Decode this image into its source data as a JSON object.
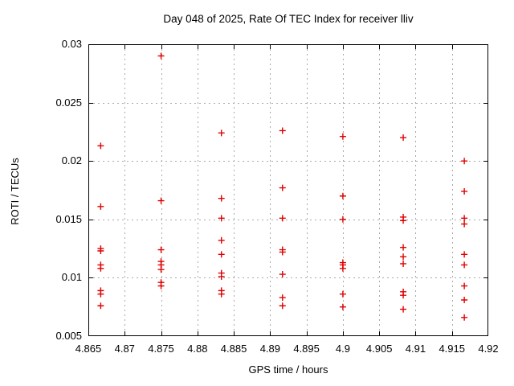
{
  "title": "Day 048 of 2025, Rate Of TEC Index for receiver lliv",
  "chart_data": {
    "type": "scatter",
    "title": "Day 048 of 2025, Rate Of TEC Index for receiver lliv",
    "xlabel": "GPS time / hours",
    "ylabel": "ROTI / TECUs",
    "xlim": [
      4.865,
      4.92
    ],
    "ylim": [
      0.005,
      0.03
    ],
    "xticks": [
      4.865,
      4.87,
      4.875,
      4.88,
      4.885,
      4.89,
      4.895,
      4.9,
      4.905,
      4.91,
      4.915,
      4.92
    ],
    "xtick_labels": [
      "4.865",
      "4.87",
      "4.875",
      "4.88",
      "4.885",
      "4.89",
      "4.895",
      "4.9",
      "4.905",
      "4.91",
      "4.915",
      "4.92"
    ],
    "yticks": [
      0.005,
      0.01,
      0.015,
      0.02,
      0.025,
      0.03
    ],
    "ytick_labels": [
      "0.005",
      "0.01",
      "0.015",
      "0.02",
      "0.025",
      "0.03"
    ],
    "grid": true,
    "grid_style": "dashed",
    "grid_color": "#a9a9a9",
    "legend": "none",
    "marker": {
      "shape": "plus",
      "color": "#e00000",
      "size": 9
    },
    "series": [
      {
        "name": "ROTI",
        "points": [
          [
            4.8667,
            0.0213
          ],
          [
            4.8667,
            0.0161
          ],
          [
            4.8667,
            0.0125
          ],
          [
            4.8667,
            0.0123
          ],
          [
            4.8667,
            0.0111
          ],
          [
            4.8667,
            0.0108
          ],
          [
            4.8667,
            0.0089
          ],
          [
            4.8667,
            0.0086
          ],
          [
            4.8667,
            0.0076
          ],
          [
            4.875,
            0.029
          ],
          [
            4.875,
            0.0166
          ],
          [
            4.875,
            0.0124
          ],
          [
            4.875,
            0.0114
          ],
          [
            4.875,
            0.0111
          ],
          [
            4.875,
            0.0107
          ],
          [
            4.875,
            0.0096
          ],
          [
            4.875,
            0.0093
          ],
          [
            4.8833,
            0.0224
          ],
          [
            4.8833,
            0.0168
          ],
          [
            4.8833,
            0.0151
          ],
          [
            4.8833,
            0.0132
          ],
          [
            4.8833,
            0.012
          ],
          [
            4.8833,
            0.0104
          ],
          [
            4.8833,
            0.0101
          ],
          [
            4.8833,
            0.0089
          ],
          [
            4.8833,
            0.0086
          ],
          [
            4.8917,
            0.0226
          ],
          [
            4.8917,
            0.0177
          ],
          [
            4.8917,
            0.0151
          ],
          [
            4.8917,
            0.0124
          ],
          [
            4.8917,
            0.0122
          ],
          [
            4.8917,
            0.0103
          ],
          [
            4.8917,
            0.0083
          ],
          [
            4.8917,
            0.0076
          ],
          [
            4.9,
            0.0221
          ],
          [
            4.9,
            0.017
          ],
          [
            4.9,
            0.015
          ],
          [
            4.9,
            0.0113
          ],
          [
            4.9,
            0.0111
          ],
          [
            4.9,
            0.0108
          ],
          [
            4.9,
            0.0086
          ],
          [
            4.9,
            0.0075
          ],
          [
            4.9083,
            0.022
          ],
          [
            4.9083,
            0.0152
          ],
          [
            4.9083,
            0.0149
          ],
          [
            4.9083,
            0.0126
          ],
          [
            4.9083,
            0.0118
          ],
          [
            4.9083,
            0.0112
          ],
          [
            4.9083,
            0.0088
          ],
          [
            4.9083,
            0.0085
          ],
          [
            4.9083,
            0.0073
          ],
          [
            4.9167,
            0.02
          ],
          [
            4.9167,
            0.0174
          ],
          [
            4.9167,
            0.0151
          ],
          [
            4.9167,
            0.0146
          ],
          [
            4.9167,
            0.012
          ],
          [
            4.9167,
            0.0111
          ],
          [
            4.9167,
            0.0093
          ],
          [
            4.9167,
            0.0081
          ],
          [
            4.9167,
            0.0066
          ]
        ]
      }
    ]
  }
}
